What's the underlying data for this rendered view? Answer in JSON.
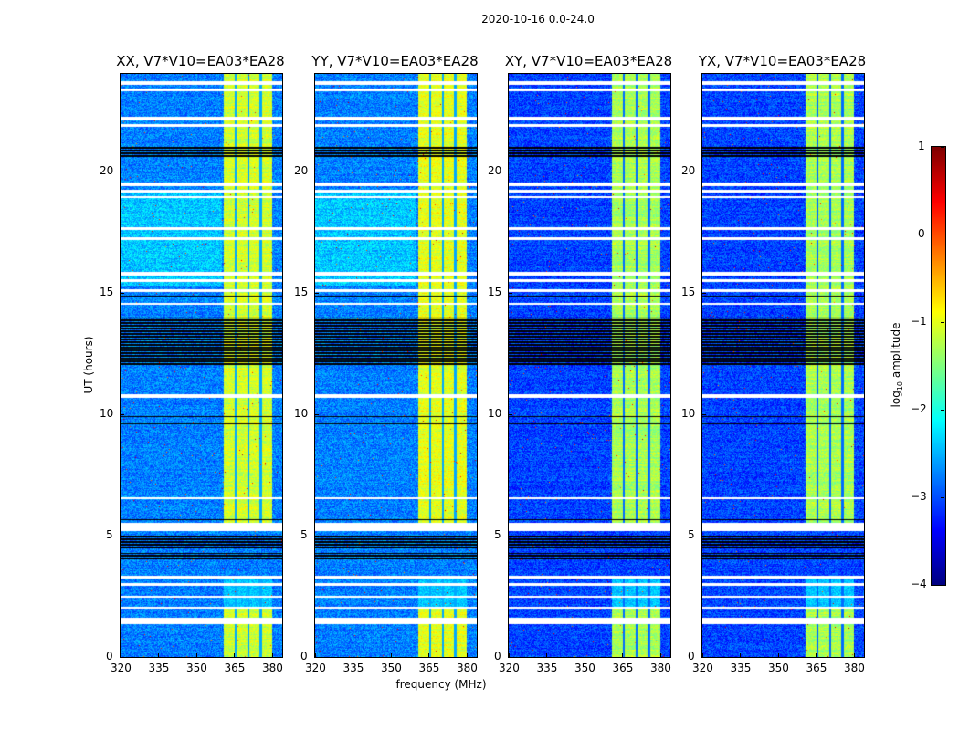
{
  "chart_data": {
    "type": "heatmap",
    "title": "2020-10-16 0.0-24.0",
    "xlabel": "frequency (MHz)",
    "ylabel": "UT (hours)",
    "xlim": [
      320,
      384
    ],
    "ylim": [
      0,
      24
    ],
    "xticks": [
      "320",
      "335",
      "350",
      "365",
      "380"
    ],
    "xtick_values": [
      320,
      335,
      350,
      365,
      380
    ],
    "yticks": [
      "0",
      "5",
      "10",
      "15",
      "20"
    ],
    "ytick_values": [
      0,
      5,
      10,
      15,
      20
    ],
    "colormap": "jet",
    "colorbar": {
      "label_prefix": "log",
      "label_sub": "10",
      "label_suffix": " amplitude",
      "range": [
        -4,
        1
      ],
      "ticks": [
        "1",
        "0",
        "−1",
        "−2",
        "−3",
        "−4"
      ],
      "tick_values": [
        1,
        0,
        -1,
        -2,
        -3,
        -4
      ]
    },
    "panels": [
      {
        "title": "XX, V7*V10=EA03*EA28",
        "background_level": -2.75,
        "band_level": -1.1,
        "bright_region": {
          "hours": [
            15.3,
            19.2
          ],
          "freq": [
            320,
            360
          ],
          "level": -2.3
        }
      },
      {
        "title": "YY, V7*V10=EA03*EA28",
        "background_level": -2.75,
        "band_level": -1.0,
        "bright_region": {
          "hours": [
            15.3,
            19.2
          ],
          "freq": [
            320,
            360
          ],
          "level": -2.3
        }
      },
      {
        "title": "XY, V7*V10=EA03*EA28",
        "background_level": -3.05,
        "band_level": -1.3,
        "bright_region": null
      },
      {
        "title": "YX, V7*V10=EA03*EA28",
        "background_level": -3.05,
        "band_level": -1.3,
        "bright_region": null
      }
    ],
    "signal_band_mhz": [
      360.5,
      380
    ],
    "subband_gaps_mhz": [
      365.4,
      370.4,
      375.2
    ],
    "flagged_hours_white": [
      [
        23.55,
        23.7
      ],
      [
        23.3,
        23.4
      ],
      [
        22.1,
        22.25
      ],
      [
        21.85,
        21.95
      ],
      [
        19.4,
        19.55
      ],
      [
        19.15,
        19.25
      ],
      [
        18.9,
        18.98
      ],
      [
        17.6,
        17.7
      ],
      [
        17.2,
        17.3
      ],
      [
        15.7,
        15.85
      ],
      [
        15.45,
        15.55
      ],
      [
        15.05,
        15.15
      ],
      [
        14.5,
        14.6
      ],
      [
        10.7,
        10.85
      ],
      [
        6.5,
        6.6
      ],
      [
        5.2,
        5.55
      ],
      [
        3.25,
        3.35
      ],
      [
        2.95,
        3.05
      ],
      [
        2.45,
        2.55
      ],
      [
        2.0,
        2.08
      ],
      [
        1.38,
        1.65
      ]
    ],
    "flagged_hours_black": [
      [
        20.6,
        21.05
      ],
      [
        14.8,
        14.9
      ],
      [
        12.0,
        14.0
      ],
      [
        9.85,
        9.95
      ],
      [
        9.6,
        9.65
      ],
      [
        5.65,
        5.7
      ],
      [
        4.5,
        5.0
      ],
      [
        4.0,
        4.3
      ]
    ]
  }
}
